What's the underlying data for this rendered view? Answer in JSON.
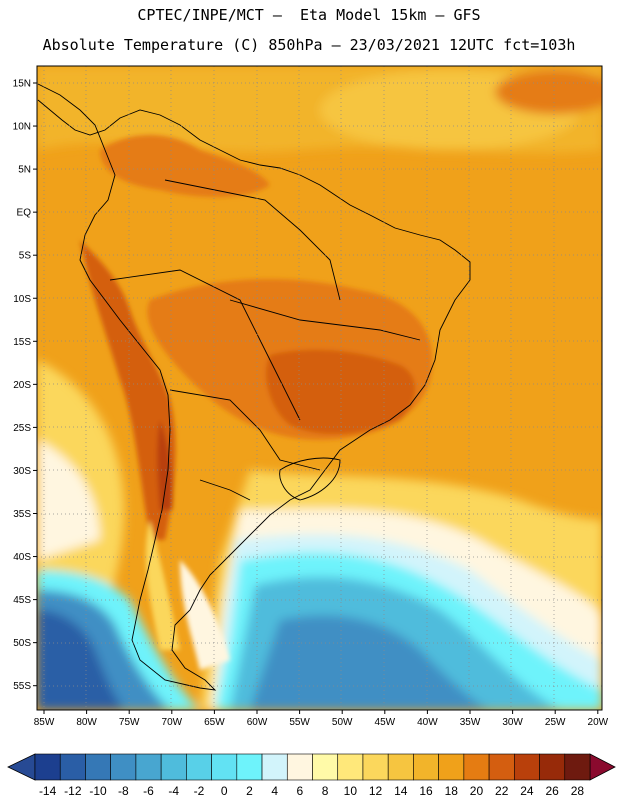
{
  "header": {
    "line1": "CPTEC/INPE/MCT —  Eta Model 15km — GFS",
    "line2": "Absolute Temperature (C) 850hPa — 23/03/2021 12UTC fct=103h"
  },
  "map": {
    "region": "South America",
    "lon_labels": [
      "85W",
      "80W",
      "75W",
      "70W",
      "65W",
      "60W",
      "55W",
      "50W",
      "45W",
      "40W",
      "35W",
      "30W",
      "25W",
      "20W"
    ],
    "lat_labels": [
      "15N",
      "10N",
      "5N",
      "EQ",
      "5S",
      "10S",
      "15S",
      "20S",
      "25S",
      "30S",
      "35S",
      "40S",
      "45S",
      "50S",
      "55S"
    ]
  },
  "colorbar": {
    "labels": [
      "-14",
      "-12",
      "-10",
      "-8",
      "-6",
      "-4",
      "-2",
      "0",
      "2",
      "4",
      "6",
      "8",
      "10",
      "12",
      "14",
      "16",
      "18",
      "20",
      "22",
      "24",
      "26",
      "28"
    ],
    "colors": [
      "#1c3f8f",
      "#2a5ea6",
      "#3578b6",
      "#3f8fc4",
      "#48a6d0",
      "#4fbcdc",
      "#58d0e8",
      "#62e2f3",
      "#6ef3fb",
      "#d2f4fb",
      "#fff6e0",
      "#fffaa8",
      "#ffe87a",
      "#fbd75c",
      "#f6c540",
      "#f2b42a",
      "#f0a11a",
      "#e57c12",
      "#d45e10",
      "#b9400b",
      "#972a09",
      "#6e1a0f"
    ],
    "under_color": "#274a94",
    "over_color": "#8a0a2e"
  },
  "colors": {
    "land_outline": "#000000",
    "grid": "#8a8a8a"
  }
}
